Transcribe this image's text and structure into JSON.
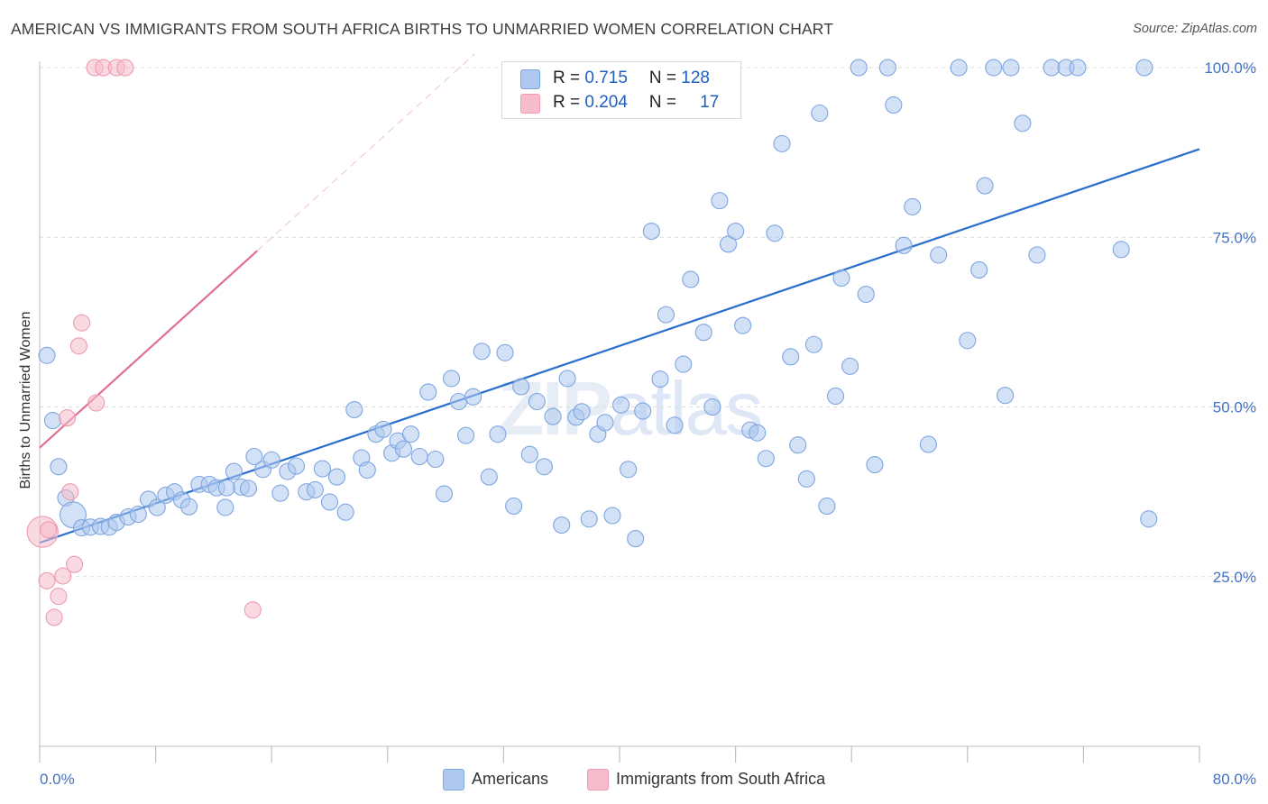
{
  "title": "AMERICAN VS IMMIGRANTS FROM SOUTH AFRICA BIRTHS TO UNMARRIED WOMEN CORRELATION CHART",
  "source": "Source: ZipAtlas.com",
  "watermark": {
    "zip": "ZIP",
    "atlas": "atlas"
  },
  "legend": {
    "rows": [
      {
        "r_label": "R = ",
        "r_value": "0.715",
        "n_label": "N = ",
        "n_value": "128",
        "color": "#aec8ef"
      },
      {
        "r_label": "R = ",
        "r_value": "0.204",
        "n_label": "N = ",
        "n_value": "17",
        "color": "#f6bccb"
      }
    ]
  },
  "bottom_legend": [
    {
      "label": "Americans",
      "color": "#aec8ef"
    },
    {
      "label": "Immigrants from South Africa",
      "color": "#f6bccb"
    }
  ],
  "colors": {
    "blue_fill": "#aec8ef",
    "blue_stroke": "#7ea6e0",
    "blue_line": "#2b6fce",
    "pink_fill": "#f6bccb",
    "pink_stroke": "#ee9ab0",
    "pink_line": "#e07095",
    "grid": "#dcdcdc",
    "tick_text": "#4472c4"
  },
  "chart_data": {
    "type": "scatter",
    "title": "AMERICAN VS IMMIGRANTS FROM SOUTH AFRICA BIRTHS TO UNMARRIED WOMEN CORRELATION CHART",
    "xlabel": "",
    "ylabel": "Births to Unmarried Women",
    "xlim": [
      0,
      80
    ],
    "ylim": [
      0,
      102
    ],
    "x_tick_labels": [
      "0.0%",
      "80.0%"
    ],
    "y_ticks": [
      25,
      50,
      75,
      100
    ],
    "y_tick_labels": [
      "25.0%",
      "50.0%",
      "75.0%",
      "100.0%"
    ],
    "grid": "horizontal-dashed",
    "legend_position": "top-center",
    "series": [
      {
        "name": "Americans",
        "r": 0.715,
        "n": 128,
        "trend": {
          "x": [
            0,
            80
          ],
          "y": [
            30,
            88
          ]
        },
        "points": [
          [
            0.5,
            57.6,
            1
          ],
          [
            0.9,
            48.0,
            1
          ],
          [
            1.3,
            41.2,
            1
          ],
          [
            1.8,
            36.6,
            1
          ],
          [
            2.3,
            34.1,
            1.6
          ],
          [
            2.9,
            32.2,
            1
          ],
          [
            3.5,
            32.3,
            1
          ],
          [
            4.2,
            32.4,
            1
          ],
          [
            4.8,
            32.3,
            1
          ],
          [
            5.3,
            33.0,
            1
          ],
          [
            6.1,
            33.8,
            1
          ],
          [
            6.8,
            34.2,
            1
          ],
          [
            7.5,
            36.4,
            1
          ],
          [
            8.1,
            35.2,
            1
          ],
          [
            8.7,
            37.0,
            1
          ],
          [
            9.3,
            37.5,
            1
          ],
          [
            9.8,
            36.3,
            1
          ],
          [
            10.3,
            35.3,
            1
          ],
          [
            11.0,
            38.6,
            1
          ],
          [
            11.7,
            38.6,
            1
          ],
          [
            12.2,
            38.1,
            1
          ],
          [
            12.8,
            35.2,
            1
          ],
          [
            13.4,
            40.5,
            1
          ],
          [
            13.9,
            38.2,
            1
          ],
          [
            14.4,
            38.0,
            1
          ],
          [
            12.9,
            38.1,
            1
          ],
          [
            14.8,
            42.7,
            1
          ],
          [
            15.4,
            40.8,
            1
          ],
          [
            16.0,
            42.2,
            1
          ],
          [
            16.6,
            37.3,
            1
          ],
          [
            17.1,
            40.5,
            1
          ],
          [
            17.7,
            41.3,
            1
          ],
          [
            18.4,
            37.5,
            1
          ],
          [
            19.0,
            37.8,
            1
          ],
          [
            19.5,
            40.9,
            1
          ],
          [
            20.0,
            36.0,
            1
          ],
          [
            20.5,
            39.7,
            1
          ],
          [
            21.1,
            34.5,
            1
          ],
          [
            21.7,
            49.6,
            1
          ],
          [
            22.2,
            42.5,
            1
          ],
          [
            22.6,
            40.7,
            1
          ],
          [
            23.2,
            46.0,
            1
          ],
          [
            23.7,
            46.7,
            1
          ],
          [
            24.3,
            43.2,
            1
          ],
          [
            24.7,
            45.0,
            1
          ],
          [
            25.1,
            43.8,
            1
          ],
          [
            25.6,
            46.0,
            1
          ],
          [
            26.2,
            42.7,
            1
          ],
          [
            26.8,
            52.2,
            1
          ],
          [
            27.3,
            42.3,
            1
          ],
          [
            27.9,
            37.2,
            1
          ],
          [
            28.4,
            54.2,
            1
          ],
          [
            28.9,
            50.8,
            1
          ],
          [
            29.4,
            45.8,
            1
          ],
          [
            29.9,
            51.5,
            1
          ],
          [
            30.5,
            58.2,
            1
          ],
          [
            31.0,
            39.7,
            1
          ],
          [
            31.6,
            46.0,
            1
          ],
          [
            32.1,
            58.0,
            1
          ],
          [
            32.7,
            35.4,
            1
          ],
          [
            33.2,
            53.0,
            1
          ],
          [
            33.8,
            43.0,
            1
          ],
          [
            34.3,
            50.8,
            1
          ],
          [
            34.8,
            41.2,
            1
          ],
          [
            35.4,
            48.6,
            1
          ],
          [
            36.0,
            32.6,
            1
          ],
          [
            36.4,
            54.2,
            1
          ],
          [
            37.0,
            48.5,
            1
          ],
          [
            37.4,
            49.3,
            1
          ],
          [
            37.9,
            33.5,
            1
          ],
          [
            38.5,
            46.0,
            1
          ],
          [
            39.0,
            47.7,
            1
          ],
          [
            39.5,
            34.0,
            1
          ],
          [
            40.1,
            50.3,
            1
          ],
          [
            40.6,
            40.8,
            1
          ],
          [
            41.1,
            30.6,
            1
          ],
          [
            41.6,
            49.4,
            1
          ],
          [
            42.2,
            75.9,
            1
          ],
          [
            42.8,
            54.1,
            1
          ],
          [
            43.2,
            63.6,
            1
          ],
          [
            43.8,
            47.3,
            1
          ],
          [
            44.4,
            56.3,
            1
          ],
          [
            44.9,
            68.8,
            1
          ],
          [
            45.3,
            94.0,
            1
          ],
          [
            45.8,
            61.0,
            1
          ],
          [
            46.4,
            50.0,
            1
          ],
          [
            46.9,
            80.4,
            1
          ],
          [
            47.5,
            74.0,
            1
          ],
          [
            48.0,
            75.9,
            1
          ],
          [
            48.5,
            62.0,
            1
          ],
          [
            49.0,
            46.6,
            1
          ],
          [
            49.5,
            46.2,
            1
          ],
          [
            50.1,
            42.4,
            1
          ],
          [
            50.7,
            75.6,
            1
          ],
          [
            51.2,
            88.8,
            1
          ],
          [
            51.8,
            57.4,
            1
          ],
          [
            52.3,
            44.4,
            1
          ],
          [
            52.9,
            39.4,
            1
          ],
          [
            53.4,
            59.2,
            1
          ],
          [
            53.8,
            93.3,
            1
          ],
          [
            54.3,
            35.4,
            1
          ],
          [
            54.9,
            51.6,
            1
          ],
          [
            55.3,
            69.0,
            1
          ],
          [
            55.9,
            56.0,
            1
          ],
          [
            56.5,
            100.0,
            1
          ],
          [
            57.0,
            66.6,
            1
          ],
          [
            57.6,
            41.5,
            1
          ],
          [
            58.5,
            100.0,
            1
          ],
          [
            58.9,
            94.5,
            1
          ],
          [
            59.6,
            73.8,
            1
          ],
          [
            60.2,
            79.5,
            1
          ],
          [
            61.3,
            44.5,
            1
          ],
          [
            62.0,
            72.4,
            1
          ],
          [
            63.4,
            100.0,
            1
          ],
          [
            64.0,
            59.8,
            1
          ],
          [
            64.8,
            70.2,
            1
          ],
          [
            65.2,
            82.6,
            1
          ],
          [
            65.8,
            100.0,
            1
          ],
          [
            66.6,
            51.7,
            1
          ],
          [
            67.0,
            100.0,
            1
          ],
          [
            67.8,
            91.8,
            1
          ],
          [
            68.8,
            72.4,
            1
          ],
          [
            69.8,
            100.0,
            1
          ],
          [
            70.8,
            100.0,
            1
          ],
          [
            71.6,
            100.0,
            1
          ],
          [
            74.6,
            73.2,
            1
          ],
          [
            76.2,
            100.0,
            1
          ],
          [
            76.5,
            33.5,
            1
          ]
        ]
      },
      {
        "name": "Immigrants from South Africa",
        "r": 0.204,
        "n": 17,
        "trend": {
          "x": [
            0,
            15
          ],
          "y": [
            44,
            73
          ]
        },
        "trend_extension": {
          "x": [
            15,
            30
          ],
          "y": [
            73,
            102
          ]
        },
        "points": [
          [
            0.2,
            31.6,
            1.9
          ],
          [
            0.6,
            31.9,
            1
          ],
          [
            0.5,
            24.4,
            1
          ],
          [
            1.0,
            19.0,
            1
          ],
          [
            1.3,
            22.1,
            1
          ],
          [
            1.6,
            25.1,
            1
          ],
          [
            1.9,
            48.4,
            1
          ],
          [
            2.1,
            37.5,
            1
          ],
          [
            2.4,
            26.8,
            1
          ],
          [
            2.7,
            59.0,
            1
          ],
          [
            2.9,
            62.4,
            1
          ],
          [
            3.9,
            50.6,
            1
          ],
          [
            3.8,
            100.0,
            1
          ],
          [
            4.4,
            100.0,
            1
          ],
          [
            5.3,
            100.0,
            1
          ],
          [
            5.9,
            100.0,
            1
          ],
          [
            14.7,
            20.1,
            1
          ]
        ]
      }
    ]
  }
}
